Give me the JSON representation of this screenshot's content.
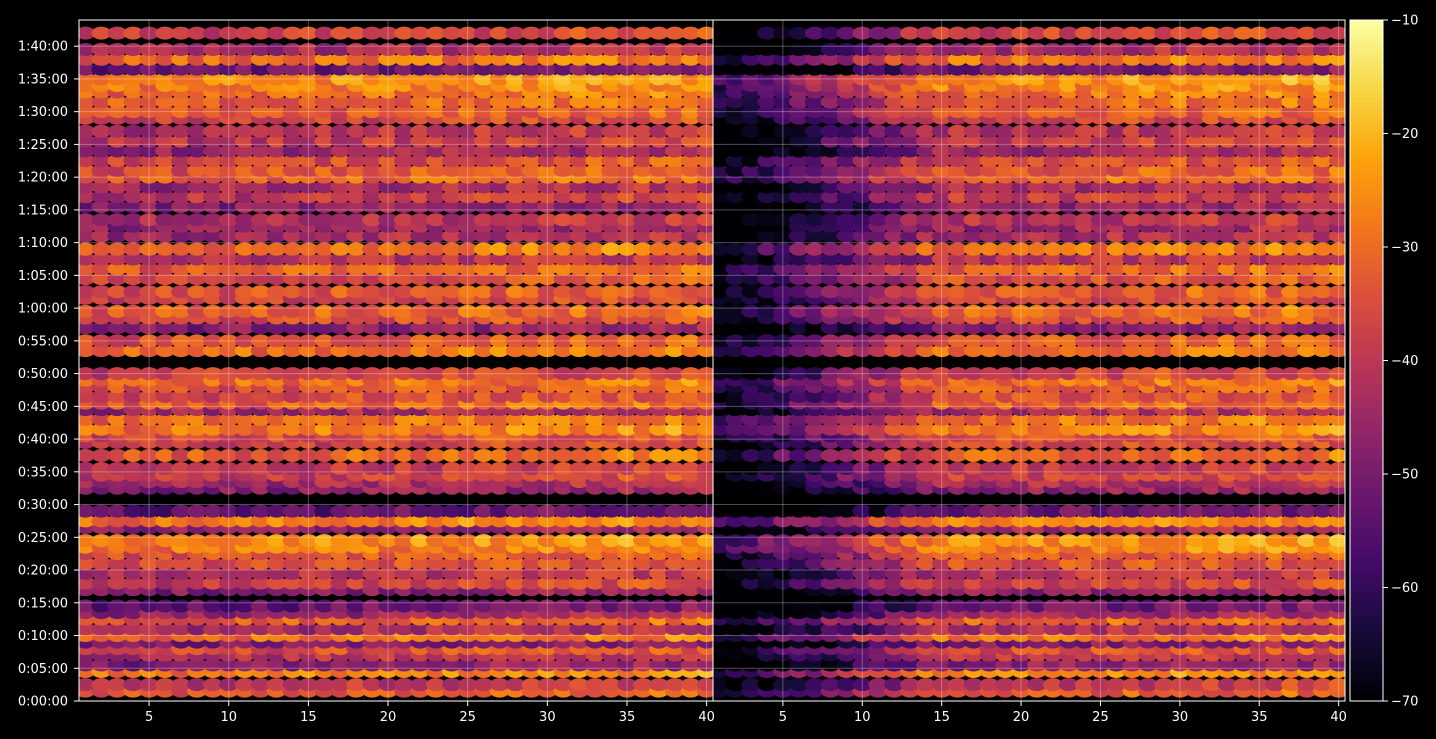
{
  "chart_data": {
    "type": "heatmap",
    "colormap": "inferno",
    "colorbar": {
      "min": -70,
      "max": -10,
      "ticks": [
        -10,
        -20,
        -30,
        -40,
        -50,
        -60,
        -70
      ],
      "tick_labels": [
        "−10",
        "−20",
        "−30",
        "−40",
        "−50",
        "−60",
        "−70"
      ]
    },
    "y_axis": {
      "range_seconds": [
        0,
        6240
      ],
      "ticks_seconds": [
        0,
        300,
        600,
        900,
        1200,
        1500,
        1800,
        2100,
        2400,
        2700,
        3000,
        3300,
        3600,
        3900,
        4200,
        4500,
        4800,
        5100,
        5400,
        5700,
        6000
      ],
      "tick_labels": [
        "0:00:00",
        "0:05:00",
        "0:10:00",
        "0:15:00",
        "0:20:00",
        "0:25:00",
        "0:30:00",
        "0:35:00",
        "0:40:00",
        "0:45:00",
        "0:50:00",
        "0:55:00",
        "1:00:00",
        "1:05:00",
        "1:10:00",
        "1:15:00",
        "1:20:00",
        "1:25:00",
        "1:30:00",
        "1:35:00",
        "1:40:00"
      ]
    },
    "panels": [
      {
        "x_range": [
          1,
          40
        ],
        "x_ticks": [
          5,
          10,
          15,
          20,
          25,
          30,
          35,
          40
        ],
        "x_tick_labels": [
          "5",
          "10",
          "15",
          "20",
          "25",
          "30",
          "35",
          "40"
        ]
      },
      {
        "x_range": [
          1,
          40
        ],
        "x_ticks": [
          5,
          10,
          15,
          20,
          25,
          30,
          35,
          40
        ],
        "x_tick_labels": [
          "5",
          "10",
          "15",
          "20",
          "25",
          "30",
          "35",
          "40"
        ]
      }
    ],
    "grid": true,
    "rows": [
      {
        "t": 90,
        "v": -36
      },
      {
        "t": 150,
        "v": -42
      },
      {
        "t": 270,
        "v": -30
      },
      {
        "t": 330,
        "v": -50
      },
      {
        "t": 420,
        "v": -44
      },
      {
        "t": 480,
        "v": -38
      },
      {
        "t": 540,
        "v": -52
      },
      {
        "t": 600,
        "v": -32
      },
      {
        "t": 660,
        "v": -46
      },
      {
        "t": 750,
        "v": -34
      },
      {
        "t": 810,
        "v": -48
      },
      {
        "t": 870,
        "v": -55
      },
      {
        "t": 1020,
        "v": -50
      },
      {
        "t": 1080,
        "v": -40
      },
      {
        "t": 1170,
        "v": -44
      },
      {
        "t": 1260,
        "v": -38
      },
      {
        "t": 1350,
        "v": -36
      },
      {
        "t": 1410,
        "v": -30
      },
      {
        "t": 1470,
        "v": -28
      },
      {
        "t": 1590,
        "v": -48
      },
      {
        "t": 1650,
        "v": -30
      },
      {
        "t": 1740,
        "v": -56
      },
      {
        "t": 1950,
        "v": -50
      },
      {
        "t": 2010,
        "v": -46
      },
      {
        "t": 2070,
        "v": -40
      },
      {
        "t": 2130,
        "v": -42
      },
      {
        "t": 2250,
        "v": -34
      },
      {
        "t": 2370,
        "v": -40
      },
      {
        "t": 2430,
        "v": -38
      },
      {
        "t": 2490,
        "v": -30
      },
      {
        "t": 2580,
        "v": -32
      },
      {
        "t": 2670,
        "v": -46
      },
      {
        "t": 2730,
        "v": -34
      },
      {
        "t": 2790,
        "v": -38
      },
      {
        "t": 2880,
        "v": -36
      },
      {
        "t": 2940,
        "v": -32
      },
      {
        "t": 3000,
        "v": -40
      },
      {
        "t": 3210,
        "v": -32
      },
      {
        "t": 3300,
        "v": -36
      },
      {
        "t": 3420,
        "v": -50
      },
      {
        "t": 3510,
        "v": -38
      },
      {
        "t": 3570,
        "v": -34
      },
      {
        "t": 3690,
        "v": -40
      },
      {
        "t": 3750,
        "v": -36
      },
      {
        "t": 3870,
        "v": -38
      },
      {
        "t": 3960,
        "v": -34
      },
      {
        "t": 4050,
        "v": -44
      },
      {
        "t": 4140,
        "v": -32
      },
      {
        "t": 4260,
        "v": -46
      },
      {
        "t": 4350,
        "v": -48
      },
      {
        "t": 4410,
        "v": -44
      },
      {
        "t": 4530,
        "v": -50
      },
      {
        "t": 4620,
        "v": -42
      },
      {
        "t": 4710,
        "v": -46
      },
      {
        "t": 4800,
        "v": -34
      },
      {
        "t": 4860,
        "v": -36
      },
      {
        "t": 4950,
        "v": -38
      },
      {
        "t": 5040,
        "v": -48
      },
      {
        "t": 5130,
        "v": -42
      },
      {
        "t": 5220,
        "v": -44
      },
      {
        "t": 5340,
        "v": -40
      },
      {
        "t": 5400,
        "v": -36
      },
      {
        "t": 5490,
        "v": -34
      },
      {
        "t": 5580,
        "v": -32
      },
      {
        "t": 5640,
        "v": -30
      },
      {
        "t": 5700,
        "v": -28
      },
      {
        "t": 5790,
        "v": -54
      },
      {
        "t": 5880,
        "v": -32
      },
      {
        "t": 5970,
        "v": -46
      },
      {
        "t": 6120,
        "v": -40
      }
    ]
  }
}
